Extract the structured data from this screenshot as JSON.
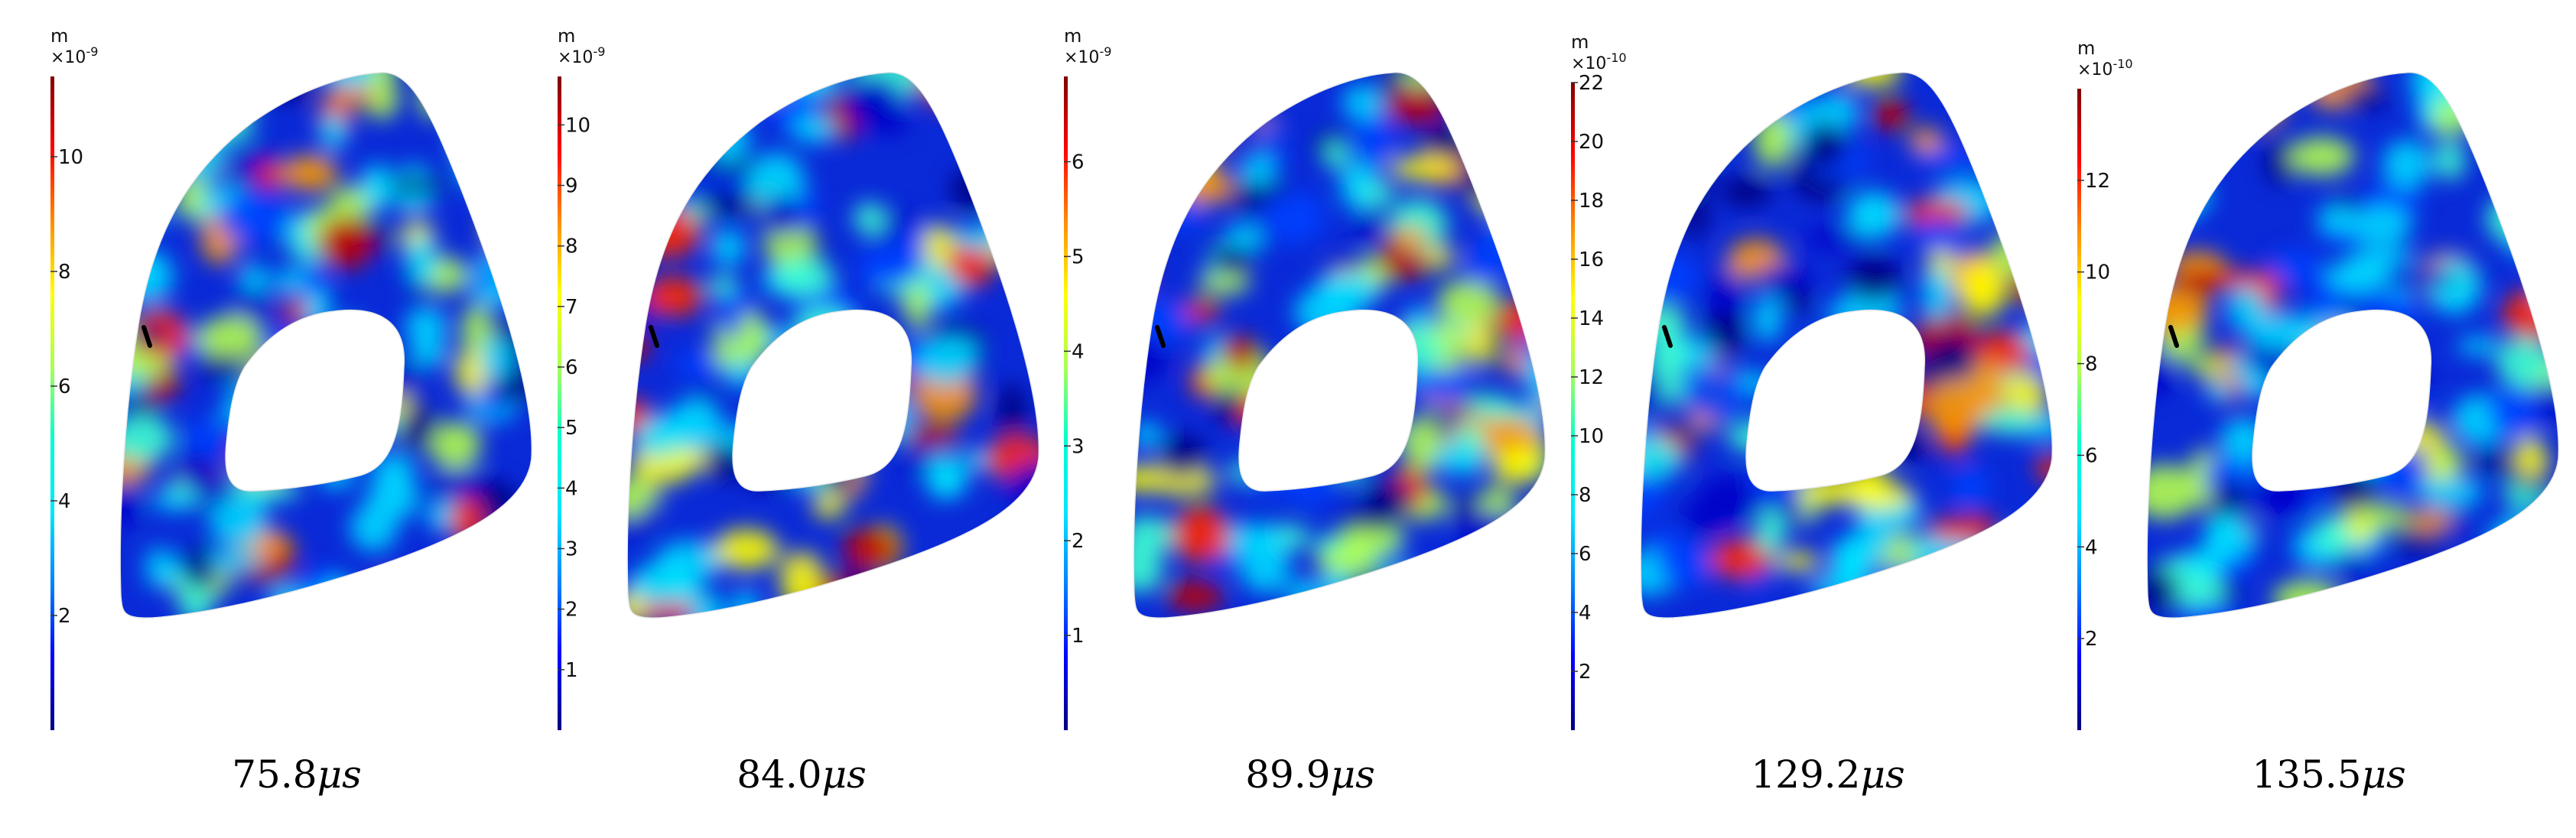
{
  "colormap": [
    "#00007f",
    "#0000ff",
    "#0080ff",
    "#00e5ff",
    "#00ffd0",
    "#aaff55",
    "#ffff00",
    "#ff8c00",
    "#ff0000",
    "#7f0000"
  ],
  "panels": [
    {
      "time_value": "75.8",
      "time_unit": "μs",
      "colorbar": {
        "unit": "m",
        "exponent_base": "×10",
        "exponent": "-9",
        "ticks": [
          "10",
          "8",
          "6",
          "4",
          "2"
        ],
        "max": 11.4
      },
      "source_marker_color": "#000000"
    },
    {
      "time_value": "84.0",
      "time_unit": "μs",
      "colorbar": {
        "unit": "m",
        "exponent_base": "×10",
        "exponent": "-9",
        "ticks": [
          "10",
          "9",
          "8",
          "7",
          "6",
          "5",
          "4",
          "3",
          "2",
          "1"
        ],
        "max": 10.8
      },
      "source_marker_color": "#000000"
    },
    {
      "time_value": "89.9",
      "time_unit": "μs",
      "colorbar": {
        "unit": "m",
        "exponent_base": "×10",
        "exponent": "-9",
        "ticks": [
          "6",
          "5",
          "4",
          "3",
          "2",
          "1"
        ],
        "max": 6.9
      },
      "source_marker_color": "#000000"
    },
    {
      "time_value": "129.2",
      "time_unit": "μs",
      "colorbar": {
        "unit": "m",
        "exponent_base": "×10",
        "exponent": "-10",
        "ticks": [
          "22",
          "20",
          "18",
          "16",
          "14",
          "12",
          "10",
          "8",
          "6",
          "4",
          "2"
        ],
        "max": 22
      },
      "source_marker_color": "#000000"
    },
    {
      "time_value": "135.5",
      "time_unit": "μs",
      "colorbar": {
        "unit": "m",
        "exponent_base": "×10",
        "exponent": "-10",
        "ticks": [
          "12",
          "10",
          "8",
          "6",
          "4",
          "2"
        ],
        "max": 14
      },
      "source_marker_color": "#000000"
    }
  ]
}
